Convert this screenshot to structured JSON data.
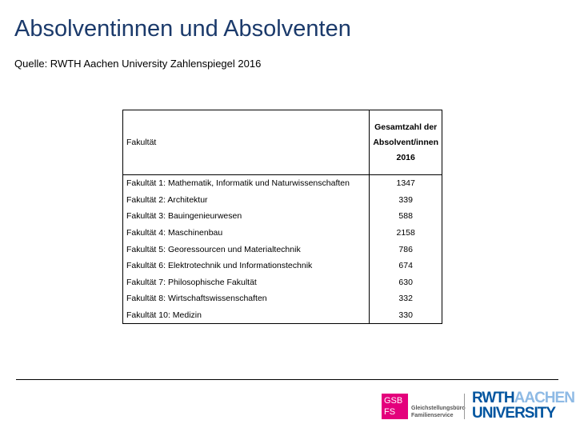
{
  "header": {
    "title": "Absolventinnen und Absolventen",
    "source": "Quelle: RWTH Aachen University Zahlenspiegel 2016"
  },
  "table": {
    "columns": [
      "Fakultät",
      "Gesamtzahl der Absolvent/innen 2016"
    ],
    "rows": [
      [
        "Fakultät 1: Mathematik, Informatik und Naturwissenschaften",
        1347
      ],
      [
        "Fakultät 2: Architektur",
        339
      ],
      [
        "Fakultät 3: Bauingenieurwesen",
        588
      ],
      [
        "Fakultät 4: Maschinenbau",
        2158
      ],
      [
        "Fakultät 5: Georessourcen und Materialtechnik",
        786
      ],
      [
        "Fakultät 6: Elektrotechnik und Informationstechnik",
        674
      ],
      [
        "Fakultät 7: Philosophische Fakultät",
        630
      ],
      [
        "Fakultät 8: Wirtschaftswissenschaften",
        332
      ],
      [
        "Fakultät 10: Medizin",
        330
      ]
    ]
  },
  "footer": {
    "gsb_logo": {
      "line1": "GSB",
      "line2": "FS",
      "text1": "Gleichstellungsbüro",
      "text2": "Familienservice"
    },
    "rwth_logo": {
      "rwth": "RWTH",
      "aachen": "AACHEN",
      "university": "UNIVERSITY"
    }
  }
}
